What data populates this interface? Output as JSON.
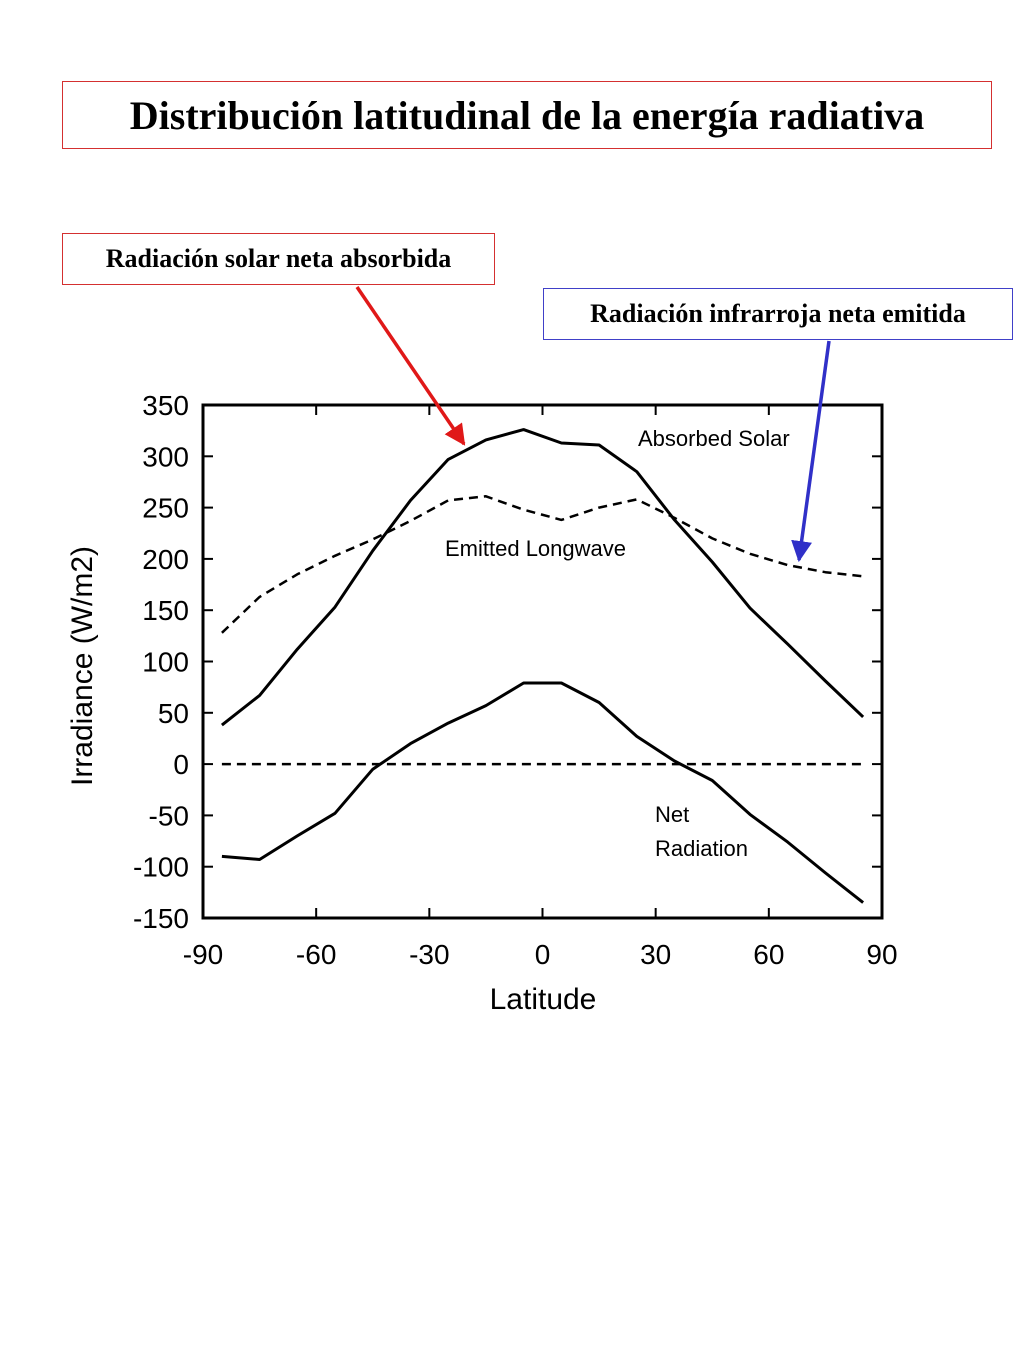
{
  "slide": {
    "title": "Distribución latitudinal de la energía radiativa",
    "callouts": {
      "solar": "Radiación solar neta absorbida",
      "infrared": "Radiación infrarroja neta emitida"
    },
    "colors": {
      "solar_arrow": "#e01818",
      "infrared_arrow": "#3030c8",
      "title_border": "#d43030",
      "ir_border": "#4040c8"
    }
  },
  "chart_data": {
    "type": "line",
    "xlabel": "Latitude",
    "ylabel": "Irradiance (W/m2)",
    "xlim": [
      -90,
      90
    ],
    "ylim": [
      -150,
      350
    ],
    "xticks": [
      -90,
      -60,
      -30,
      0,
      30,
      60,
      90
    ],
    "yticks": [
      350,
      300,
      250,
      200,
      150,
      100,
      50,
      0,
      -50,
      -100,
      -150
    ],
    "x": [
      -85,
      -75,
      -65,
      -55,
      -45,
      -35,
      -25,
      -15,
      -5,
      5,
      15,
      25,
      35,
      45,
      55,
      65,
      75,
      85
    ],
    "series": [
      {
        "name": "Absorbed Solar",
        "style": "solid",
        "values": [
          38,
          67,
          112,
          153,
          208,
          257,
          297,
          316,
          326,
          313,
          311,
          285,
          238,
          197,
          152,
          117,
          81,
          46
        ]
      },
      {
        "name": "Emitted Longwave",
        "style": "dashed",
        "values": [
          128,
          163,
          185,
          203,
          219,
          237,
          257,
          261,
          248,
          238,
          250,
          258,
          240,
          220,
          205,
          194,
          187,
          183
        ]
      },
      {
        "name": "Net Radiation",
        "style": "solid",
        "values": [
          -90,
          -93,
          -70,
          -48,
          -5,
          20,
          40,
          57,
          79,
          79,
          60,
          27,
          3,
          -16,
          -49,
          -76,
          -106,
          -135
        ]
      },
      {
        "name": "",
        "style": "dashed",
        "values": [
          0,
          0,
          0,
          0,
          0,
          0,
          0,
          0,
          0,
          0,
          0,
          0,
          0,
          0,
          0,
          0,
          0,
          0
        ]
      }
    ],
    "annotations": [
      "Absorbed Solar",
      "Emitted Longwave",
      "Net",
      "Radiation"
    ],
    "grid": false,
    "legend": "none"
  }
}
